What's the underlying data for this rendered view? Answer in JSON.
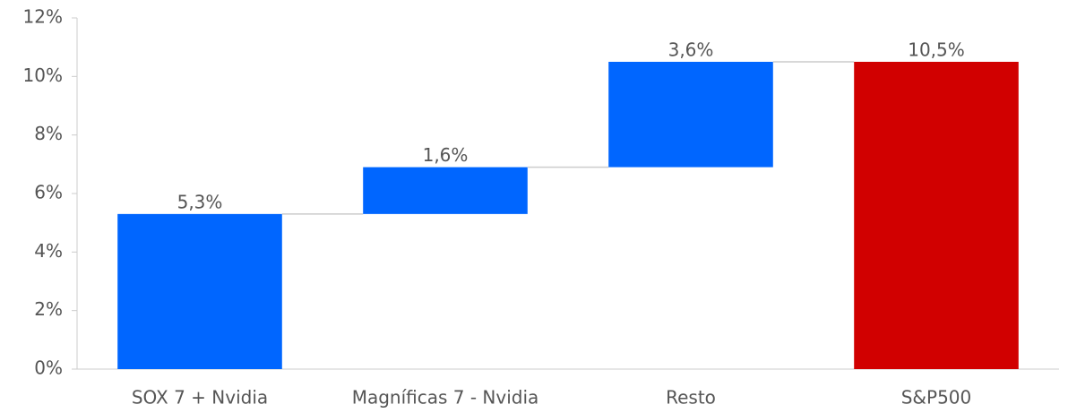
{
  "chart_data": {
    "type": "waterfall",
    "categories": [
      "SOX 7 + Nvidia",
      "Magníficas 7 - Nvidia",
      "Resto",
      "S&P500"
    ],
    "values": [
      5.3,
      1.6,
      3.6,
      10.5
    ],
    "value_labels": [
      "5,3%",
      "1,6%",
      "3,6%",
      "10,5%"
    ],
    "measure": [
      "relative",
      "relative",
      "relative",
      "total"
    ],
    "colors": [
      "#0066ff",
      "#0066ff",
      "#0066ff",
      "#d10000"
    ],
    "ylim": [
      0,
      12
    ],
    "yticks": [
      {
        "value": 0,
        "label": "0%"
      },
      {
        "value": 2,
        "label": "2%"
      },
      {
        "value": 4,
        "label": "4%"
      },
      {
        "value": 6,
        "label": "6%"
      },
      {
        "value": 8,
        "label": "8%"
      },
      {
        "value": 10,
        "label": "10%"
      },
      {
        "value": 12,
        "label": "12%"
      }
    ],
    "grid": false
  }
}
